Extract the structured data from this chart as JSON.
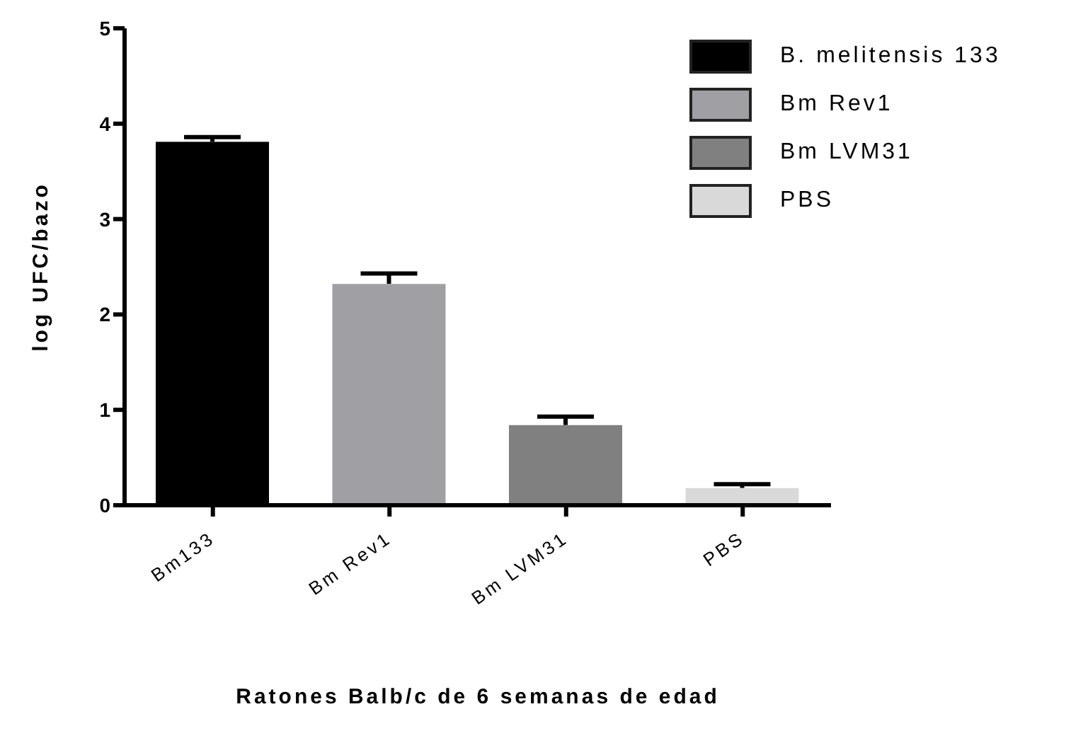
{
  "chart_data": {
    "type": "bar",
    "xlabel": "Ratones Balb/c de 6 semanas de edad",
    "ylabel": "log UFC/bazo",
    "categories": [
      "Bm133",
      "Bm Rev1",
      "Bm LVM31",
      "PBS"
    ],
    "stacked": true,
    "series": [
      {
        "name": "B. melitensis 133",
        "color": "#000000",
        "values": [
          3.81,
          null,
          null,
          null
        ],
        "errors": [
          0.05,
          null,
          null,
          null
        ]
      },
      {
        "name": "Bm Rev1",
        "color": "#a0a0a4",
        "values": [
          null,
          2.32,
          null,
          null
        ],
        "errors": [
          null,
          0.11,
          null,
          null
        ]
      },
      {
        "name": "Bm LVM31",
        "color": "#808080",
        "values": [
          null,
          null,
          0.84,
          null
        ],
        "errors": [
          null,
          null,
          0.09,
          null
        ]
      },
      {
        "name": "PBS",
        "color": "#d9d9d9",
        "values": [
          null,
          null,
          null,
          0.18
        ],
        "errors": [
          null,
          null,
          null,
          0.04
        ]
      }
    ],
    "ylim": [
      0,
      5
    ],
    "yticks": [
      0,
      1,
      2,
      3,
      4,
      5
    ],
    "grid": false,
    "legend": "top right"
  }
}
